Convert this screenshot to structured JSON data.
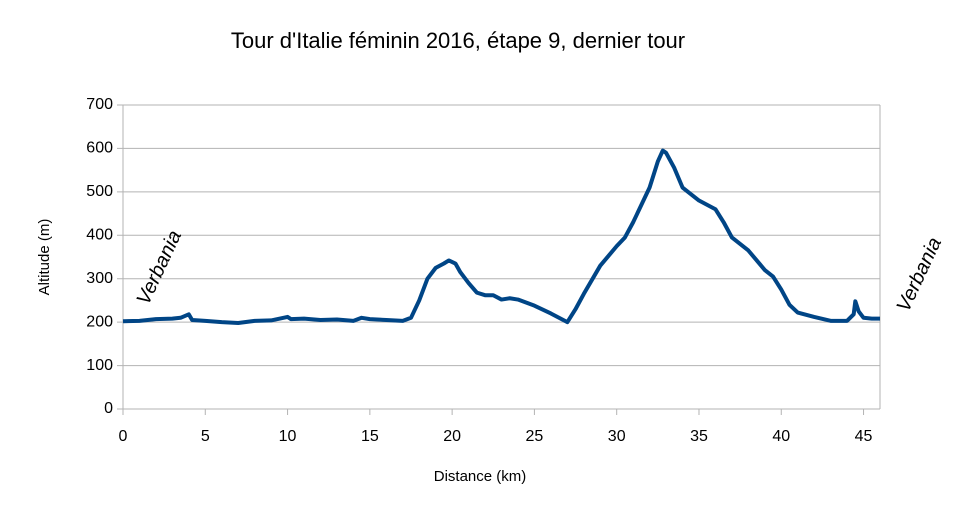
{
  "chart_data": {
    "type": "line",
    "title": "Tour d'Italie féminin 2016, étape 9, dernier tour",
    "x_label": "Distance (km)",
    "y_label": "Altitude (m)",
    "annotations": [
      "Verbania",
      "Verbania"
    ],
    "xlim": [
      0,
      46
    ],
    "xticks": [
      0,
      5,
      10,
      15,
      20,
      25,
      30,
      35,
      40,
      45
    ],
    "ylim": [
      0,
      700
    ],
    "yticks": [
      0,
      100,
      200,
      300,
      400,
      500,
      600,
      700
    ],
    "grid": true,
    "x": [
      0,
      1,
      2,
      3,
      3.5,
      4,
      4.2,
      5,
      6,
      7,
      8,
      9,
      10,
      10.2,
      11,
      12,
      13,
      14,
      14.5,
      15,
      16,
      17,
      17.5,
      18,
      18.5,
      19,
      19.5,
      19.8,
      20.2,
      20.5,
      21,
      21.5,
      22,
      22.5,
      23,
      23.5,
      24,
      25,
      26,
      27,
      27.5,
      28,
      29,
      30,
      30.5,
      31,
      32,
      32.5,
      32.8,
      33,
      33.5,
      34,
      34.5,
      35,
      36,
      36.5,
      37,
      38,
      39,
      39.5,
      40,
      40.5,
      41,
      42,
      43,
      44,
      44.4,
      44.5,
      44.7,
      45,
      45.5,
      46
    ],
    "series": [
      {
        "color": "#004586",
        "values": [
          202,
          203,
          207,
          208,
          210,
          218,
          205,
          203,
          200,
          198,
          203,
          204,
          212,
          207,
          208,
          205,
          206,
          203,
          210,
          207,
          205,
          203,
          210,
          250,
          300,
          325,
          335,
          342,
          335,
          315,
          290,
          268,
          262,
          262,
          252,
          255,
          252,
          238,
          220,
          200,
          230,
          265,
          330,
          375,
          395,
          430,
          510,
          570,
          595,
          590,
          555,
          510,
          495,
          480,
          460,
          430,
          395,
          365,
          320,
          305,
          275,
          240,
          222,
          212,
          203,
          203,
          218,
          248,
          225,
          210,
          208,
          208
        ]
      }
    ]
  }
}
